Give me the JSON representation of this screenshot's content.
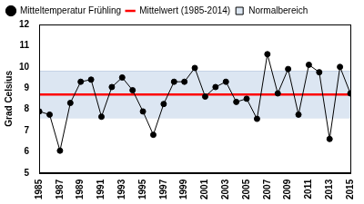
{
  "chart_data": {
    "type": "line",
    "y_label": "Grad Celsius",
    "x": [
      1985,
      1986,
      1987,
      1988,
      1989,
      1990,
      1991,
      1992,
      1993,
      1994,
      1995,
      1996,
      1997,
      1998,
      1999,
      2000,
      2001,
      2002,
      2003,
      2004,
      2005,
      2006,
      2007,
      2008,
      2009,
      2010,
      2011,
      2012,
      2013,
      2014,
      2015
    ],
    "series": [
      {
        "name": "Mitteltemperatur Frühling",
        "type": "line",
        "color": "#000000",
        "marker": "circle",
        "values": [
          7.9,
          7.75,
          6.05,
          8.3,
          9.3,
          9.4,
          7.65,
          9.05,
          9.5,
          8.9,
          7.9,
          6.8,
          8.25,
          9.3,
          9.3,
          9.95,
          8.6,
          9.05,
          9.3,
          8.35,
          8.5,
          7.55,
          10.6,
          8.75,
          9.9,
          7.75,
          10.1,
          9.75,
          6.6,
          10.0,
          8.75
        ]
      },
      {
        "name": "Mittelwert (1985-2014)",
        "type": "hline",
        "color": "#ff0000",
        "value": 8.7
      },
      {
        "name": "Normalbereich",
        "type": "band",
        "color": "#dce6f2",
        "lower": 7.6,
        "upper": 9.8
      }
    ],
    "xlim": [
      1985,
      2015
    ],
    "xticks": [
      1985,
      1987,
      1989,
      1991,
      1993,
      1995,
      1997,
      1999,
      2001,
      2003,
      2005,
      2007,
      2009,
      2011,
      2013,
      2015
    ],
    "ylim": [
      5,
      12
    ],
    "yticks": [
      5,
      6,
      7,
      8,
      9,
      10,
      11,
      12
    ],
    "grid": false,
    "legend": "upper left"
  }
}
